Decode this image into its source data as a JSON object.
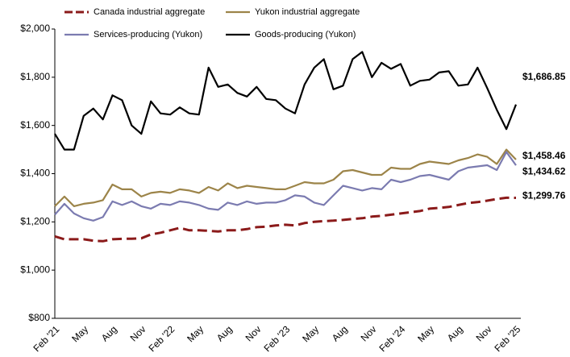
{
  "chart_data": {
    "type": "line",
    "categories": [
      "Feb '21",
      null,
      null,
      "May",
      null,
      null,
      "Aug",
      null,
      null,
      "Nov",
      null,
      null,
      "Feb '22",
      null,
      null,
      "May",
      null,
      null,
      "Aug",
      null,
      null,
      "Nov",
      null,
      null,
      "Feb '23",
      null,
      null,
      "May",
      null,
      null,
      "Aug",
      null,
      null,
      "Nov",
      null,
      null,
      "Feb '24",
      null,
      null,
      "May",
      null,
      null,
      "Aug",
      null,
      null,
      "Nov",
      null,
      null,
      "Feb '25"
    ],
    "series": [
      {
        "name": "Canada industrial aggregate",
        "color": "#8b1a1a",
        "dash": true,
        "values": [
          1140,
          1128,
          1128,
          1128,
          1122,
          1120,
          1128,
          1130,
          1130,
          1132,
          1148,
          1155,
          1165,
          1175,
          1165,
          1165,
          1163,
          1160,
          1165,
          1165,
          1170,
          1178,
          1180,
          1185,
          1188,
          1185,
          1195,
          1200,
          1203,
          1205,
          1208,
          1212,
          1215,
          1222,
          1225,
          1230,
          1235,
          1240,
          1245,
          1255,
          1258,
          1262,
          1270,
          1278,
          1282,
          1288,
          1295,
          1300,
          1299.76
        ],
        "value_labels": [
          null,
          null,
          null,
          null,
          null,
          null,
          null,
          null,
          null,
          null,
          null,
          null,
          null,
          null,
          null,
          null,
          null,
          null,
          null,
          null,
          null,
          null,
          null,
          null,
          null,
          null,
          null,
          null,
          null,
          null,
          null,
          null,
          null,
          null,
          null,
          null,
          null,
          null,
          null,
          null,
          null,
          null,
          null,
          null,
          null,
          null,
          null,
          null,
          "$1,299.76"
        ]
      },
      {
        "name": "Yukon industrial aggregate",
        "color": "#9c8449",
        "dash": false,
        "values": [
          1265,
          1305,
          1265,
          1275,
          1280,
          1290,
          1355,
          1335,
          1335,
          1305,
          1320,
          1325,
          1320,
          1335,
          1330,
          1320,
          1345,
          1330,
          1360,
          1340,
          1350,
          1345,
          1340,
          1335,
          1335,
          1350,
          1365,
          1360,
          1360,
          1375,
          1410,
          1415,
          1405,
          1395,
          1395,
          1425,
          1420,
          1420,
          1440,
          1450,
          1445,
          1440,
          1455,
          1465,
          1480,
          1470,
          1440,
          1500,
          1458.46
        ],
        "value_labels": [
          null,
          null,
          null,
          null,
          null,
          null,
          null,
          null,
          null,
          null,
          null,
          null,
          null,
          null,
          null,
          null,
          null,
          null,
          null,
          null,
          null,
          null,
          null,
          null,
          null,
          null,
          null,
          null,
          null,
          null,
          null,
          null,
          null,
          null,
          null,
          null,
          null,
          null,
          null,
          null,
          null,
          null,
          null,
          null,
          null,
          null,
          null,
          null,
          "$1,458.46"
        ]
      },
      {
        "name": "Services-producing (Yukon)",
        "color": "#7b7bb0",
        "dash": false,
        "values": [
          1230,
          1275,
          1235,
          1215,
          1205,
          1220,
          1285,
          1270,
          1285,
          1265,
          1255,
          1275,
          1270,
          1285,
          1280,
          1270,
          1255,
          1250,
          1280,
          1270,
          1285,
          1275,
          1280,
          1280,
          1290,
          1310,
          1305,
          1280,
          1270,
          1310,
          1350,
          1340,
          1330,
          1340,
          1335,
          1375,
          1365,
          1375,
          1390,
          1395,
          1385,
          1375,
          1410,
          1425,
          1430,
          1435,
          1415,
          1490,
          1434.62
        ],
        "value_labels": [
          null,
          null,
          null,
          null,
          null,
          null,
          null,
          null,
          null,
          null,
          null,
          null,
          null,
          null,
          null,
          null,
          null,
          null,
          null,
          null,
          null,
          null,
          null,
          null,
          null,
          null,
          null,
          null,
          null,
          null,
          null,
          null,
          null,
          null,
          null,
          null,
          null,
          null,
          null,
          null,
          null,
          null,
          null,
          null,
          null,
          null,
          null,
          null,
          "$1,434.62"
        ]
      },
      {
        "name": "Goods-producing (Yukon)",
        "color": "#000000",
        "dash": false,
        "values": [
          1565,
          1500,
          1500,
          1640,
          1670,
          1625,
          1725,
          1705,
          1600,
          1565,
          1700,
          1650,
          1645,
          1675,
          1650,
          1645,
          1840,
          1760,
          1770,
          1735,
          1720,
          1760,
          1710,
          1705,
          1670,
          1650,
          1770,
          1840,
          1875,
          1750,
          1765,
          1875,
          1905,
          1800,
          1860,
          1835,
          1855,
          1765,
          1785,
          1790,
          1820,
          1825,
          1765,
          1770,
          1840,
          1755,
          1665,
          1585,
          1686.85
        ],
        "value_labels": [
          null,
          null,
          null,
          null,
          null,
          null,
          null,
          null,
          null,
          null,
          null,
          null,
          null,
          null,
          null,
          null,
          null,
          null,
          null,
          null,
          null,
          null,
          null,
          null,
          null,
          null,
          null,
          null,
          null,
          null,
          null,
          null,
          null,
          null,
          null,
          null,
          null,
          null,
          null,
          null,
          null,
          null,
          null,
          null,
          null,
          null,
          null,
          null,
          "$1,686.85"
        ]
      }
    ],
    "ylim": [
      800,
      2000
    ],
    "yticks": [
      {
        "value": 800,
        "label": "$800"
      },
      {
        "value": 1000,
        "label": "$1,000"
      },
      {
        "value": 1200,
        "label": "$1,200"
      },
      {
        "value": 1400,
        "label": "$1,400"
      },
      {
        "value": 1600,
        "label": "$1,600"
      },
      {
        "value": 1800,
        "label": "$1,800"
      },
      {
        "value": 2000,
        "label": "$2,000"
      }
    ],
    "grid": false,
    "legend": "top"
  }
}
